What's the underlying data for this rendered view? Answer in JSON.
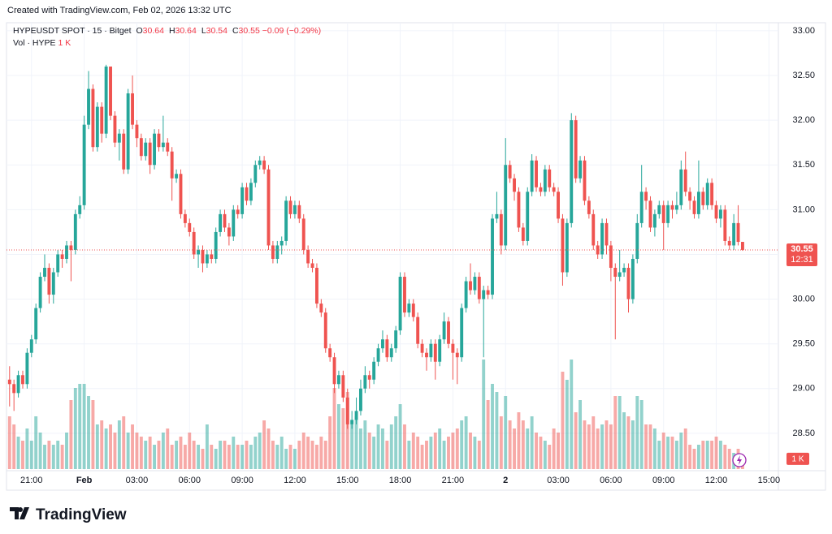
{
  "header": {
    "created": "Created with TradingView.com, Feb 02, 2026 13:32 UTC"
  },
  "chart_data": {
    "type": "candlestick",
    "legend": {
      "symbol": "HYPEUSDT SPOT · 15 · Bitget",
      "fields": [
        {
          "label": "O",
          "value": 30.64
        },
        {
          "label": "H",
          "value": 30.64
        },
        {
          "label": "L",
          "value": 30.54
        },
        {
          "label": "C",
          "value": 30.55
        }
      ],
      "change": "−0.09 (−0.29%)",
      "volume_name": "Vol · HYPE",
      "volume_value": "1 K"
    },
    "up_color": "#26a69a",
    "down_color": "#ef5350",
    "open": [
      29.1,
      29.05,
      28.95,
      29.15,
      29.05,
      29.4,
      29.55,
      29.9,
      30.25,
      30.35,
      30.05,
      30.3,
      30.5,
      30.45,
      30.6,
      30.55,
      30.95,
      31.05,
      31.95,
      32.35,
      31.7,
      32.15,
      31.85,
      32.6,
      32.05,
      31.75,
      31.85,
      31.45,
      32.3,
      31.95,
      31.8,
      31.6,
      31.75,
      31.5,
      31.85,
      31.7,
      31.75,
      31.65,
      31.35,
      31.4,
      30.95,
      30.85,
      30.75,
      30.5,
      30.55,
      30.4,
      30.5,
      30.45,
      30.75,
      30.95,
      30.8,
      30.7,
      31.0,
      30.95,
      31.25,
      31.1,
      31.3,
      31.5,
      31.55,
      31.45,
      30.6,
      30.45,
      30.6,
      30.65,
      31.1,
      30.95,
      31.05,
      30.9,
      30.55,
      30.4,
      30.35,
      29.95,
      29.85,
      29.45,
      29.35,
      29.05,
      29.15,
      28.9,
      28.6,
      28.65,
      28.75,
      29.0,
      29.15,
      29.1,
      29.3,
      29.45,
      29.55,
      29.35,
      29.45,
      29.65,
      30.25,
      29.85,
      29.95,
      29.8,
      29.5,
      29.4,
      29.35,
      29.5,
      29.3,
      29.55,
      29.75,
      29.5,
      29.4,
      29.35,
      29.9,
      30.2,
      30.1,
      30.25,
      30.0,
      30.1,
      30.05,
      30.9,
      30.95,
      30.6,
      31.5,
      31.35,
      31.2,
      30.8,
      30.65,
      31.2,
      31.55,
      31.25,
      31.2,
      31.45,
      31.25,
      31.2,
      30.9,
      30.3,
      30.85,
      32.0,
      31.35,
      31.55,
      31.1,
      30.95,
      30.6,
      30.5,
      30.85,
      30.6,
      30.35,
      30.25,
      30.3,
      30.35,
      30.0,
      30.45,
      30.85,
      31.2,
      31.1,
      30.8,
      30.95,
      31.05,
      30.85,
      31.05,
      31.0,
      31.05,
      31.45,
      31.2,
      31.1,
      30.95,
      31.2,
      31.05,
      31.3,
      31.05,
      30.9,
      31.0,
      30.65,
      30.6,
      30.85,
      30.64
    ],
    "high": [
      29.25,
      29.1,
      29.2,
      29.2,
      29.45,
      29.6,
      29.95,
      30.3,
      30.5,
      30.4,
      30.35,
      30.55,
      30.55,
      30.65,
      30.65,
      31.0,
      31.15,
      32.05,
      32.55,
      32.4,
      32.2,
      32.2,
      32.62,
      32.6,
      32.1,
      31.9,
      31.9,
      32.35,
      32.5,
      32.0,
      31.85,
      31.8,
      31.8,
      31.9,
      31.9,
      32.05,
      31.8,
      31.7,
      31.45,
      31.45,
      31.0,
      30.9,
      30.8,
      30.6,
      30.6,
      30.55,
      30.55,
      30.8,
      31.0,
      31.0,
      30.85,
      31.05,
      31.05,
      31.3,
      31.3,
      31.35,
      31.55,
      31.6,
      31.6,
      31.5,
      30.65,
      30.65,
      30.7,
      31.15,
      31.15,
      31.1,
      31.1,
      30.95,
      30.6,
      30.45,
      30.4,
      30.0,
      29.9,
      29.5,
      29.4,
      29.2,
      29.2,
      29.0,
      28.75,
      28.9,
      29.1,
      29.25,
      29.2,
      29.35,
      29.5,
      29.65,
      29.6,
      29.5,
      29.7,
      30.3,
      30.3,
      30.0,
      30.0,
      29.85,
      29.55,
      29.45,
      29.55,
      29.55,
      29.6,
      29.85,
      29.8,
      29.55,
      29.45,
      29.95,
      30.25,
      30.4,
      30.3,
      30.3,
      30.15,
      30.15,
      30.95,
      31.2,
      31.0,
      31.8,
      31.55,
      31.4,
      31.25,
      30.85,
      31.25,
      31.62,
      31.6,
      31.3,
      31.5,
      31.5,
      31.3,
      31.25,
      30.95,
      30.9,
      32.08,
      32.05,
      31.6,
      31.6,
      31.15,
      31.0,
      30.65,
      30.9,
      30.9,
      30.65,
      30.4,
      30.55,
      30.4,
      30.4,
      30.5,
      30.95,
      31.5,
      31.25,
      31.15,
      31.0,
      31.1,
      31.1,
      31.1,
      31.1,
      31.2,
      31.55,
      31.65,
      31.25,
      31.15,
      31.55,
      31.25,
      31.35,
      31.35,
      31.1,
      31.05,
      31.05,
      30.7,
      30.95,
      31.05,
      30.64
    ],
    "low": [
      28.8,
      28.75,
      28.9,
      29.0,
      29.0,
      29.35,
      29.5,
      29.85,
      30.2,
      29.95,
      29.95,
      30.25,
      30.35,
      30.4,
      30.2,
      30.5,
      30.9,
      31.0,
      31.9,
      31.65,
      31.65,
      31.75,
      31.8,
      32.0,
      31.7,
      31.55,
      31.4,
      31.4,
      31.9,
      31.7,
      31.55,
      31.55,
      31.4,
      31.45,
      31.65,
      31.65,
      31.6,
      31.1,
      31.3,
      30.9,
      30.8,
      30.7,
      30.45,
      30.35,
      30.3,
      30.35,
      30.4,
      30.4,
      30.7,
      30.75,
      30.6,
      30.65,
      30.9,
      30.9,
      31.05,
      31.05,
      31.25,
      31.45,
      31.4,
      30.55,
      30.4,
      30.4,
      30.5,
      30.6,
      30.9,
      30.9,
      30.85,
      30.5,
      30.35,
      30.3,
      29.9,
      29.8,
      29.4,
      29.3,
      28.95,
      29.0,
      28.85,
      28.55,
      28.55,
      28.6,
      28.7,
      28.95,
      29.0,
      29.05,
      29.25,
      29.4,
      29.3,
      29.3,
      29.4,
      29.6,
      29.8,
      29.8,
      29.75,
      29.45,
      29.35,
      29.2,
      29.3,
      29.1,
      29.25,
      29.5,
      29.45,
      29.1,
      29.05,
      29.3,
      29.85,
      30.05,
      30.05,
      29.95,
      29.35,
      30.0,
      30.0,
      30.85,
      30.5,
      30.55,
      31.3,
      31.1,
      30.75,
      30.6,
      30.6,
      31.15,
      31.2,
      31.15,
      31.15,
      31.2,
      31.15,
      30.85,
      30.15,
      30.25,
      30.8,
      31.3,
      31.3,
      31.05,
      30.9,
      30.55,
      30.45,
      30.45,
      30.5,
      30.2,
      29.55,
      30.2,
      30.25,
      29.85,
      29.95,
      30.4,
      30.8,
      31.0,
      30.75,
      30.7,
      30.9,
      30.55,
      30.8,
      30.9,
      30.95,
      31.0,
      31.15,
      31.0,
      30.9,
      30.9,
      31.0,
      31.0,
      31.0,
      30.85,
      30.8,
      30.6,
      30.55,
      30.55,
      30.6,
      30.54
    ],
    "close": [
      29.05,
      28.95,
      29.15,
      29.05,
      29.4,
      29.55,
      29.9,
      30.25,
      30.35,
      30.05,
      30.3,
      30.5,
      30.45,
      30.6,
      30.55,
      30.95,
      31.05,
      31.95,
      32.35,
      31.7,
      32.15,
      31.85,
      32.6,
      32.05,
      31.75,
      31.85,
      31.45,
      32.3,
      31.95,
      31.8,
      31.6,
      31.75,
      31.5,
      31.85,
      31.7,
      31.75,
      31.65,
      31.35,
      31.4,
      30.95,
      30.85,
      30.75,
      30.5,
      30.55,
      30.4,
      30.5,
      30.45,
      30.75,
      30.95,
      30.8,
      30.7,
      31.0,
      30.95,
      31.25,
      31.1,
      31.3,
      31.5,
      31.55,
      31.45,
      30.6,
      30.45,
      30.6,
      30.65,
      31.1,
      30.95,
      31.05,
      30.9,
      30.55,
      30.4,
      30.35,
      29.95,
      29.85,
      29.45,
      29.35,
      29.05,
      29.15,
      28.9,
      28.6,
      28.65,
      28.75,
      29.0,
      29.15,
      29.1,
      29.3,
      29.45,
      29.55,
      29.35,
      29.45,
      29.65,
      30.25,
      29.85,
      29.95,
      29.8,
      29.5,
      29.4,
      29.35,
      29.5,
      29.3,
      29.55,
      29.75,
      29.5,
      29.4,
      29.35,
      29.9,
      30.2,
      30.1,
      30.25,
      30.0,
      30.1,
      30.05,
      30.9,
      30.95,
      30.6,
      31.5,
      31.35,
      31.2,
      30.8,
      30.65,
      31.2,
      31.55,
      31.25,
      31.2,
      31.45,
      31.25,
      31.2,
      30.9,
      30.3,
      30.85,
      32.0,
      31.35,
      31.55,
      31.1,
      30.95,
      30.6,
      30.5,
      30.85,
      30.6,
      30.35,
      30.25,
      30.3,
      30.35,
      30.0,
      30.45,
      30.85,
      31.2,
      31.1,
      30.8,
      30.95,
      31.05,
      30.85,
      31.05,
      31.0,
      31.05,
      31.45,
      31.2,
      31.1,
      30.95,
      31.2,
      31.05,
      31.3,
      31.05,
      30.9,
      31.0,
      30.65,
      30.6,
      30.85,
      30.64,
      30.55
    ],
    "volume": [
      9100,
      7700,
      5600,
      4900,
      7000,
      4900,
      9100,
      6300,
      4200,
      4900,
      4200,
      4900,
      4200,
      6300,
      11900,
      14000,
      14700,
      14700,
      12600,
      11900,
      7700,
      8400,
      7000,
      7700,
      6300,
      8400,
      9100,
      6300,
      7700,
      6300,
      5600,
      4900,
      5600,
      4200,
      4900,
      6300,
      7000,
      4200,
      4900,
      5600,
      4200,
      6300,
      4900,
      4200,
      3500,
      7700,
      4200,
      3500,
      4900,
      4900,
      4200,
      5600,
      4200,
      4200,
      4900,
      4200,
      5600,
      6300,
      8400,
      7000,
      4900,
      4200,
      5600,
      3500,
      4200,
      3500,
      4900,
      6300,
      5600,
      4900,
      4200,
      5600,
      4900,
      9100,
      14000,
      11200,
      10500,
      13300,
      7700,
      9100,
      7000,
      8400,
      6300,
      5600,
      7700,
      7000,
      4900,
      7700,
      9100,
      11200,
      7700,
      4900,
      6300,
      5600,
      4200,
      4900,
      5600,
      6300,
      7000,
      4900,
      5600,
      6300,
      7000,
      8400,
      9100,
      6300,
      5600,
      4900,
      18900,
      11900,
      14700,
      13300,
      9100,
      12600,
      8400,
      7000,
      9800,
      8400,
      7000,
      9100,
      6300,
      5600,
      4900,
      4200,
      7000,
      6300,
      16800,
      15400,
      18900,
      9800,
      11900,
      8400,
      7700,
      9100,
      7000,
      7700,
      8400,
      7700,
      12600,
      12600,
      9800,
      9100,
      8400,
      12600,
      11900,
      7700,
      7700,
      7000,
      4900,
      6300,
      5600,
      5600,
      4900,
      6300,
      7000,
      4200,
      3500,
      4200,
      4900,
      4900,
      4900,
      5600,
      4900,
      4200,
      3500,
      2800,
      3500,
      1000
    ],
    "countdown": "12:31",
    "xlim": [
      -0.7,
      174.6
    ],
    "xticks": [
      {
        "value": 5,
        "label": "21:00"
      },
      {
        "value": 17,
        "label": "Feb"
      },
      {
        "value": 29,
        "label": "03:00"
      },
      {
        "value": 41,
        "label": "06:00"
      },
      {
        "value": 53,
        "label": "09:00"
      },
      {
        "value": 65,
        "label": "12:00"
      },
      {
        "value": 77,
        "label": "15:00"
      },
      {
        "value": 89,
        "label": "18:00"
      },
      {
        "value": 101,
        "label": "21:00"
      },
      {
        "value": 113,
        "label": "2"
      },
      {
        "value": 125,
        "label": "03:00"
      },
      {
        "value": 137,
        "label": "06:00"
      },
      {
        "value": 149,
        "label": "09:00"
      },
      {
        "value": 161,
        "label": "12:00"
      },
      {
        "value": 173,
        "label": "15:00"
      }
    ],
    "ylim": [
      28.1,
      33.09
    ],
    "yticks": [
      {
        "value": 28.5,
        "label": "28.50"
      },
      {
        "value": 29,
        "label": "29.00"
      },
      {
        "value": 29.5,
        "label": "29.50"
      },
      {
        "value": 30,
        "label": "30.00"
      },
      {
        "value": 30.5,
        "label": "30.50"
      },
      {
        "value": 31,
        "label": "31.00"
      },
      {
        "value": 31.5,
        "label": "31.50"
      },
      {
        "value": 32,
        "label": "32.00"
      },
      {
        "value": 32.5,
        "label": "32.50"
      },
      {
        "value": 33,
        "label": "33.00"
      }
    ],
    "grid": true
  },
  "footer": {
    "logo": "TradingView"
  }
}
